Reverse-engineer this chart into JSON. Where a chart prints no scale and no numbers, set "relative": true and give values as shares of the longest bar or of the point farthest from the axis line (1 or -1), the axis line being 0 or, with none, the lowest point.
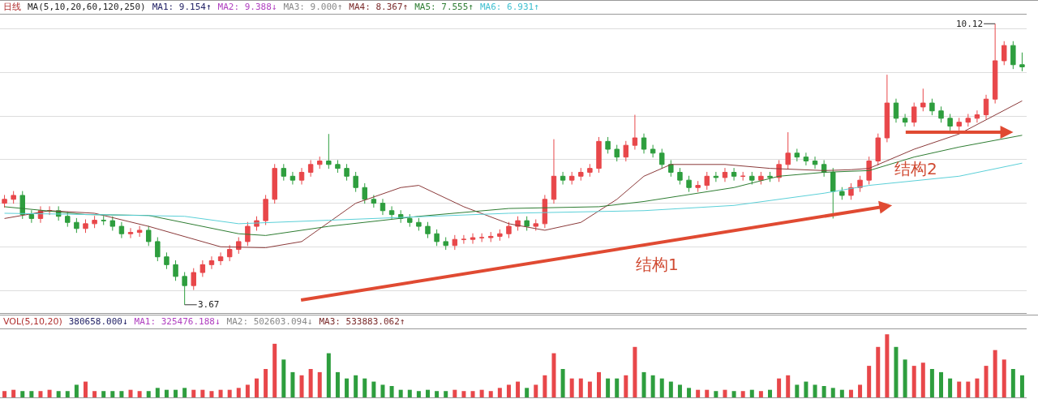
{
  "chart_data": [
    {
      "type": "candlestick",
      "title": "日线",
      "annotations": [
        "MA(5,10,20,60,120,250)",
        "MA1: 9.154↑",
        "MA2: 9.388↓",
        "MA3: 9.000↑",
        "MA4: 8.367↑",
        "MA5: 7.555↑",
        "MA6: 6.931↑",
        "10.12",
        "3.67",
        "结构1",
        "结构2"
      ],
      "categories": [
        null,
        null,
        null,
        null,
        null,
        null,
        null,
        null,
        null,
        null,
        null,
        null,
        null,
        null,
        null,
        null,
        null,
        null,
        null,
        null,
        null,
        null,
        null,
        null,
        null,
        null,
        null,
        null,
        null,
        null,
        null,
        null,
        null,
        null,
        null,
        null,
        null,
        null,
        null,
        null,
        null,
        null,
        null,
        null,
        null,
        null,
        null,
        null,
        null,
        null,
        null,
        null,
        null,
        null,
        null,
        null,
        null,
        null,
        null,
        null,
        null,
        null,
        null,
        null,
        null,
        null,
        null,
        null,
        null,
        null,
        null,
        null,
        null,
        null,
        null,
        null,
        null,
        null,
        null,
        null,
        null,
        null,
        null,
        null,
        null,
        null,
        null,
        null,
        null,
        null,
        null,
        null,
        null,
        null,
        null,
        null,
        null,
        null,
        null,
        null,
        null,
        null,
        null,
        null,
        null,
        null,
        null,
        null,
        null,
        null,
        null,
        null,
        null,
        null
      ],
      "ohlc": [
        [
          6.0,
          6.19,
          5.9,
          6.09
        ],
        [
          6.09,
          6.28,
          5.99,
          6.18
        ],
        [
          6.18,
          6.28,
          5.64,
          5.74
        ],
        [
          5.74,
          5.84,
          5.55,
          5.65
        ],
        [
          5.65,
          5.93,
          5.55,
          5.83
        ],
        [
          5.83,
          5.93,
          5.73,
          5.83
        ],
        [
          5.83,
          5.93,
          5.6,
          5.7
        ],
        [
          5.7,
          5.8,
          5.46,
          5.56
        ],
        [
          5.56,
          5.66,
          5.32,
          5.42
        ],
        [
          5.42,
          5.63,
          5.32,
          5.53
        ],
        [
          5.53,
          5.71,
          5.43,
          5.61
        ],
        [
          5.61,
          5.71,
          5.5,
          5.6
        ],
        [
          5.6,
          5.7,
          5.37,
          5.47
        ],
        [
          5.47,
          5.57,
          5.2,
          5.3
        ],
        [
          5.3,
          5.43,
          5.2,
          5.33
        ],
        [
          5.33,
          5.48,
          5.23,
          5.38
        ],
        [
          5.38,
          5.48,
          5.02,
          5.12
        ],
        [
          5.12,
          5.22,
          4.67,
          4.77
        ],
        [
          4.77,
          4.87,
          4.49,
          4.59
        ],
        [
          4.59,
          4.69,
          4.22,
          4.32
        ],
        [
          4.32,
          4.42,
          3.67,
          4.11
        ],
        [
          4.11,
          4.51,
          4.01,
          4.41
        ],
        [
          4.41,
          4.69,
          4.31,
          4.59
        ],
        [
          4.59,
          4.78,
          4.49,
          4.68
        ],
        [
          4.68,
          4.87,
          4.58,
          4.77
        ],
        [
          4.77,
          5.04,
          4.67,
          4.94
        ],
        [
          4.94,
          5.22,
          4.84,
          5.12
        ],
        [
          5.12,
          5.57,
          5.02,
          5.47
        ],
        [
          5.47,
          5.7,
          5.37,
          5.6
        ],
        [
          5.6,
          6.19,
          5.5,
          6.09
        ],
        [
          6.09,
          6.9,
          5.99,
          6.8
        ],
        [
          6.8,
          6.9,
          6.52,
          6.62
        ],
        [
          6.62,
          6.72,
          6.43,
          6.53
        ],
        [
          6.53,
          6.81,
          6.43,
          6.71
        ],
        [
          6.71,
          6.99,
          6.61,
          6.89
        ],
        [
          6.89,
          7.07,
          6.79,
          6.97
        ],
        [
          6.97,
          7.59,
          6.79,
          6.89
        ],
        [
          6.89,
          6.99,
          6.7,
          6.8
        ],
        [
          6.8,
          6.9,
          6.52,
          6.62
        ],
        [
          6.62,
          6.72,
          6.26,
          6.36
        ],
        [
          6.36,
          6.46,
          5.99,
          6.09
        ],
        [
          6.09,
          6.19,
          5.9,
          6.0
        ],
        [
          6.0,
          6.1,
          5.73,
          5.83
        ],
        [
          5.83,
          5.93,
          5.64,
          5.74
        ],
        [
          5.74,
          5.84,
          5.55,
          5.65
        ],
        [
          5.65,
          5.75,
          5.46,
          5.56
        ],
        [
          5.56,
          5.66,
          5.37,
          5.47
        ],
        [
          5.47,
          5.57,
          5.2,
          5.3
        ],
        [
          5.3,
          5.4,
          5.02,
          5.12
        ],
        [
          5.12,
          5.22,
          4.93,
          5.03
        ],
        [
          5.03,
          5.27,
          4.93,
          5.17
        ],
        [
          5.17,
          5.27,
          5.07,
          5.17
        ],
        [
          5.17,
          5.31,
          5.07,
          5.21
        ],
        [
          5.21,
          5.31,
          5.11,
          5.21
        ],
        [
          5.21,
          5.34,
          5.11,
          5.24
        ],
        [
          5.24,
          5.4,
          5.14,
          5.3
        ],
        [
          5.3,
          5.57,
          5.2,
          5.47
        ],
        [
          5.47,
          5.7,
          5.37,
          5.6
        ],
        [
          5.6,
          5.7,
          5.37,
          5.47
        ],
        [
          5.47,
          5.63,
          5.37,
          5.53
        ],
        [
          5.53,
          6.19,
          5.43,
          6.09
        ],
        [
          6.09,
          7.47,
          5.99,
          6.62
        ],
        [
          6.62,
          6.72,
          6.43,
          6.53
        ],
        [
          6.53,
          6.72,
          6.43,
          6.62
        ],
        [
          6.62,
          6.81,
          6.52,
          6.71
        ],
        [
          6.71,
          6.9,
          6.61,
          6.8
        ],
        [
          6.8,
          7.52,
          6.7,
          7.42
        ],
        [
          7.42,
          7.52,
          7.14,
          7.24
        ],
        [
          7.24,
          7.34,
          6.96,
          7.06
        ],
        [
          7.06,
          7.43,
          6.96,
          7.33
        ],
        [
          7.33,
          8.03,
          7.23,
          7.5
        ],
        [
          7.5,
          7.6,
          7.14,
          7.24
        ],
        [
          7.24,
          7.34,
          7.05,
          7.15
        ],
        [
          7.15,
          7.25,
          6.79,
          6.89
        ],
        [
          6.89,
          6.99,
          6.61,
          6.71
        ],
        [
          6.71,
          6.81,
          6.43,
          6.53
        ],
        [
          6.53,
          6.63,
          6.26,
          6.36
        ],
        [
          6.36,
          6.51,
          6.26,
          6.41
        ],
        [
          6.41,
          6.72,
          6.31,
          6.62
        ],
        [
          6.62,
          6.72,
          6.49,
          6.59
        ],
        [
          6.59,
          6.81,
          6.49,
          6.71
        ],
        [
          6.71,
          6.81,
          6.52,
          6.62
        ],
        [
          6.62,
          6.72,
          6.52,
          6.62
        ],
        [
          6.62,
          6.72,
          6.43,
          6.53
        ],
        [
          6.53,
          6.72,
          6.43,
          6.62
        ],
        [
          6.62,
          6.72,
          6.49,
          6.59
        ],
        [
          6.59,
          6.99,
          6.49,
          6.89
        ],
        [
          6.89,
          7.63,
          6.79,
          7.15
        ],
        [
          7.15,
          7.25,
          6.96,
          7.06
        ],
        [
          7.06,
          7.16,
          6.87,
          6.97
        ],
        [
          6.97,
          7.07,
          6.79,
          6.89
        ],
        [
          6.89,
          6.99,
          6.61,
          6.71
        ],
        [
          6.71,
          6.81,
          5.65,
          6.27
        ],
        [
          6.27,
          6.37,
          6.08,
          6.18
        ],
        [
          6.18,
          6.46,
          6.08,
          6.36
        ],
        [
          6.36,
          6.63,
          6.26,
          6.53
        ],
        [
          6.53,
          7.07,
          6.43,
          6.97
        ],
        [
          6.97,
          7.6,
          6.87,
          7.5
        ],
        [
          7.5,
          8.95,
          7.4,
          8.3
        ],
        [
          8.3,
          8.4,
          7.85,
          7.95
        ],
        [
          7.95,
          8.05,
          7.76,
          7.86
        ],
        [
          7.86,
          8.31,
          7.76,
          8.21
        ],
        [
          8.21,
          8.63,
          8.11,
          8.3
        ],
        [
          8.3,
          8.4,
          8.02,
          8.12
        ],
        [
          8.12,
          8.22,
          7.85,
          7.95
        ],
        [
          7.95,
          8.05,
          7.67,
          7.77
        ],
        [
          7.77,
          7.96,
          7.67,
          7.86
        ],
        [
          7.86,
          8.05,
          7.76,
          7.95
        ],
        [
          7.95,
          8.13,
          7.85,
          8.03
        ],
        [
          8.03,
          8.49,
          7.93,
          8.39
        ],
        [
          8.39,
          10.12,
          8.29,
          9.27
        ],
        [
          9.27,
          9.72,
          9.17,
          9.62
        ],
        [
          9.62,
          9.72,
          9.08,
          9.18
        ],
        [
          9.18,
          9.46,
          9.03,
          9.13
        ]
      ],
      "colors": [
        "#e8474a",
        "#e8474a",
        "#2e9e3e",
        "#2e9e3e",
        "#e8474a",
        "#e8474a",
        "#2e9e3e",
        "#2e9e3e",
        "#2e9e3e",
        "#e8474a",
        "#e8474a",
        "#2e9e3e",
        "#2e9e3e",
        "#2e9e3e",
        "#e8474a",
        "#e8474a",
        "#2e9e3e",
        "#2e9e3e",
        "#2e9e3e",
        "#2e9e3e",
        "#2e9e3e",
        "#e8474a",
        "#e8474a",
        "#e8474a",
        "#e8474a",
        "#e8474a",
        "#e8474a",
        "#e8474a",
        "#e8474a",
        "#e8474a",
        "#e8474a",
        "#2e9e3e",
        "#2e9e3e",
        "#e8474a",
        "#e8474a",
        "#e8474a",
        "#2e9e3e",
        "#2e9e3e",
        "#2e9e3e",
        "#2e9e3e",
        "#2e9e3e",
        "#2e9e3e",
        "#2e9e3e",
        "#2e9e3e",
        "#2e9e3e",
        "#2e9e3e",
        "#2e9e3e",
        "#2e9e3e",
        "#2e9e3e",
        "#2e9e3e",
        "#e8474a",
        "#e8474a",
        "#e8474a",
        "#e8474a",
        "#e8474a",
        "#e8474a",
        "#e8474a",
        "#e8474a",
        "#2e9e3e",
        "#e8474a",
        "#e8474a",
        "#e8474a",
        "#2e9e3e",
        "#e8474a",
        "#e8474a",
        "#e8474a",
        "#e8474a",
        "#2e9e3e",
        "#2e9e3e",
        "#e8474a",
        "#e8474a",
        "#2e9e3e",
        "#2e9e3e",
        "#2e9e3e",
        "#2e9e3e",
        "#2e9e3e",
        "#2e9e3e",
        "#e8474a",
        "#e8474a",
        "#2e9e3e",
        "#e8474a",
        "#2e9e3e",
        "#e8474a",
        "#2e9e3e",
        "#e8474a",
        "#2e9e3e",
        "#e8474a",
        "#e8474a",
        "#2e9e3e",
        "#2e9e3e",
        "#2e9e3e",
        "#2e9e3e",
        "#2e9e3e",
        "#2e9e3e",
        "#e8474a",
        "#e8474a",
        "#e8474a",
        "#e8474a",
        "#e8474a",
        "#2e9e3e",
        "#2e9e3e",
        "#e8474a",
        "#e8474a",
        "#2e9e3e",
        "#2e9e3e",
        "#2e9e3e",
        "#e8474a",
        "#e8474a",
        "#e8474a",
        "#e8474a",
        "#e8474a",
        "#e8474a",
        "#2e9e3e",
        "#2e9e3e"
      ],
      "series": [
        {
          "type": "line",
          "color": "#8b3a3a",
          "values": [
            5.65,
            null,
            null,
            null,
            null,
            5.83,
            null,
            null,
            null,
            null,
            5.77,
            null,
            null,
            null,
            null,
            null,
            5.47,
            null,
            null,
            null,
            null,
            null,
            null,
            null,
            5.0,
            null,
            null,
            null,
            null,
            4.98,
            null,
            null,
            null,
            5.12,
            null,
            null,
            null,
            null,
            null,
            6.0,
            null,
            null,
            null,
            null,
            6.36,
            null,
            6.41,
            null,
            null,
            null,
            null,
            5.92,
            null,
            null,
            null,
            null,
            5.53,
            null,
            null,
            null,
            5.38,
            null,
            null,
            null,
            5.56,
            null,
            null,
            null,
            6.09,
            null,
            null,
            6.62,
            null,
            null,
            6.89,
            null,
            null,
            null,
            null,
            null,
            6.89,
            null,
            null,
            null,
            null,
            6.8,
            null,
            null,
            null,
            null,
            null,
            6.75,
            null,
            null,
            6.77,
            null,
            6.8,
            null,
            null,
            null,
            null,
            7.24,
            null,
            null,
            null,
            null,
            7.59,
            null,
            null,
            null,
            null,
            null,
            null,
            8.35
          ]
        },
        {
          "type": "line",
          "color": "#2e7d32",
          "values": [
            5.92,
            null,
            null,
            null,
            null,
            null,
            null,
            null,
            null,
            5.74,
            null,
            null,
            null,
            null,
            null,
            null,
            5.72,
            null,
            null,
            null,
            null,
            null,
            null,
            null,
            null,
            null,
            5.3,
            null,
            null,
            5.26,
            null,
            null,
            null,
            null,
            null,
            null,
            5.47,
            null,
            null,
            null,
            null,
            null,
            null,
            null,
            null,
            null,
            5.7,
            null,
            null,
            null,
            null,
            null,
            null,
            null,
            null,
            null,
            5.88,
            null,
            null,
            null,
            null,
            null,
            null,
            null,
            null,
            null,
            5.92,
            null,
            null,
            null,
            null,
            6.04,
            null,
            null,
            null,
            null,
            null,
            null,
            null,
            null,
            null,
            6.36,
            null,
            null,
            null,
            null,
            6.62,
            null,
            null,
            null,
            null,
            6.71,
            null,
            null,
            null,
            null,
            6.75,
            null,
            null,
            null,
            null,
            7.06,
            null,
            null,
            null,
            null,
            7.29,
            null,
            null,
            null,
            null,
            null,
            null,
            7.56
          ]
        },
        {
          "type": "line",
          "color": "#5bd0d8",
          "values": [
            5.77,
            null,
            null,
            null,
            null,
            null,
            null,
            null,
            null,
            null,
            5.74,
            null,
            null,
            null,
            null,
            null,
            null,
            null,
            null,
            null,
            5.7,
            null,
            null,
            null,
            null,
            null,
            5.53,
            null,
            null,
            null,
            null,
            null,
            null,
            null,
            null,
            null,
            5.61,
            null,
            null,
            null,
            null,
            null,
            null,
            null,
            null,
            null,
            null,
            null,
            null,
            null,
            null,
            null,
            null,
            null,
            null,
            null,
            5.77,
            null,
            null,
            null,
            null,
            null,
            null,
            null,
            null,
            null,
            null,
            null,
            null,
            null,
            null,
            5.83,
            null,
            null,
            null,
            null,
            null,
            null,
            null,
            null,
            null,
            5.95,
            null,
            null,
            null,
            null,
            null,
            null,
            null,
            null,
            null,
            6.23,
            null,
            null,
            null,
            null,
            6.41,
            null,
            null,
            null,
            null,
            null,
            null,
            null,
            null,
            null,
            6.62,
            null,
            null,
            null,
            null,
            null,
            null,
            6.92
          ]
        }
      ],
      "ylim": [
        3.48,
        10.33
      ],
      "yticks": [
        {
          "value": 4,
          "label": null
        },
        {
          "value": 5,
          "label": null
        },
        {
          "value": 6,
          "label": null
        },
        {
          "value": 7,
          "label": null
        },
        {
          "value": 8,
          "label": null
        },
        {
          "value": 9,
          "label": null
        },
        {
          "value": 10,
          "label": null
        }
      ],
      "grid": "y"
    },
    {
      "type": "bar",
      "title": "VOL(5,10,20)",
      "relative": true,
      "annotations": [
        "380658.000↓",
        "MA1: 325476.188↓",
        "MA2: 502603.094↓",
        "MA3: 533883.062↑"
      ],
      "categories": [
        null,
        null,
        null,
        null,
        null,
        null,
        null,
        null,
        null,
        null,
        null,
        null,
        null,
        null,
        null,
        null,
        null,
        null,
        null,
        null,
        null,
        null,
        null,
        null,
        null,
        null,
        null,
        null,
        null,
        null,
        null,
        null,
        null,
        null,
        null,
        null,
        null,
        null,
        null,
        null,
        null,
        null,
        null,
        null,
        null,
        null,
        null,
        null,
        null,
        null,
        null,
        null,
        null,
        null,
        null,
        null,
        null,
        null,
        null,
        null,
        null,
        null,
        null,
        null,
        null,
        null,
        null,
        null,
        null,
        null,
        null,
        null,
        null,
        null,
        null,
        null,
        null,
        null,
        null,
        null,
        null,
        null,
        null,
        null,
        null,
        null,
        null,
        null,
        null,
        null,
        null,
        null,
        null,
        null,
        null,
        null,
        null,
        null,
        null,
        null,
        null,
        null,
        null,
        null,
        null,
        null,
        null,
        null,
        null,
        null,
        null,
        null,
        null,
        null
      ],
      "values": [
        0.1,
        0.12,
        0.1,
        0.1,
        0.1,
        0.12,
        0.1,
        0.1,
        0.2,
        0.25,
        0.1,
        0.1,
        0.1,
        0.1,
        0.12,
        0.1,
        0.1,
        0.15,
        0.12,
        0.12,
        0.15,
        0.12,
        0.12,
        0.1,
        0.12,
        0.12,
        0.15,
        0.2,
        0.3,
        0.45,
        0.85,
        0.6,
        0.4,
        0.35,
        0.45,
        0.4,
        0.7,
        0.4,
        0.3,
        0.35,
        0.3,
        0.25,
        0.2,
        0.18,
        0.12,
        0.12,
        0.1,
        0.12,
        0.1,
        0.1,
        0.12,
        0.1,
        0.1,
        0.12,
        0.1,
        0.15,
        0.2,
        0.25,
        0.15,
        0.2,
        0.35,
        0.7,
        0.45,
        0.3,
        0.3,
        0.25,
        0.4,
        0.3,
        0.3,
        0.35,
        0.8,
        0.4,
        0.35,
        0.3,
        0.25,
        0.2,
        0.15,
        0.12,
        0.12,
        0.1,
        0.12,
        0.1,
        0.1,
        0.12,
        0.1,
        0.12,
        0.3,
        0.35,
        0.2,
        0.25,
        0.2,
        0.18,
        0.15,
        0.12,
        0.12,
        0.2,
        0.5,
        0.8,
        1,
        0.8,
        0.6,
        0.5,
        0.55,
        0.45,
        0.4,
        0.3,
        0.25,
        0.25,
        0.3,
        0.5,
        0.75,
        0.6,
        0.45,
        0.35
      ],
      "colors": [
        "#e8474a",
        "#e8474a",
        "#2e9e3e",
        "#2e9e3e",
        "#e8474a",
        "#e8474a",
        "#2e9e3e",
        "#2e9e3e",
        "#2e9e3e",
        "#e8474a",
        "#e8474a",
        "#2e9e3e",
        "#2e9e3e",
        "#2e9e3e",
        "#e8474a",
        "#e8474a",
        "#2e9e3e",
        "#2e9e3e",
        "#2e9e3e",
        "#2e9e3e",
        "#2e9e3e",
        "#e8474a",
        "#e8474a",
        "#e8474a",
        "#e8474a",
        "#e8474a",
        "#e8474a",
        "#e8474a",
        "#e8474a",
        "#e8474a",
        "#e8474a",
        "#2e9e3e",
        "#2e9e3e",
        "#e8474a",
        "#e8474a",
        "#e8474a",
        "#2e9e3e",
        "#2e9e3e",
        "#2e9e3e",
        "#2e9e3e",
        "#2e9e3e",
        "#2e9e3e",
        "#2e9e3e",
        "#2e9e3e",
        "#2e9e3e",
        "#2e9e3e",
        "#2e9e3e",
        "#2e9e3e",
        "#2e9e3e",
        "#2e9e3e",
        "#e8474a",
        "#e8474a",
        "#e8474a",
        "#e8474a",
        "#e8474a",
        "#e8474a",
        "#e8474a",
        "#e8474a",
        "#2e9e3e",
        "#e8474a",
        "#e8474a",
        "#e8474a",
        "#2e9e3e",
        "#e8474a",
        "#e8474a",
        "#e8474a",
        "#e8474a",
        "#2e9e3e",
        "#2e9e3e",
        "#e8474a",
        "#e8474a",
        "#2e9e3e",
        "#2e9e3e",
        "#2e9e3e",
        "#2e9e3e",
        "#2e9e3e",
        "#2e9e3e",
        "#e8474a",
        "#e8474a",
        "#2e9e3e",
        "#e8474a",
        "#2e9e3e",
        "#e8474a",
        "#2e9e3e",
        "#e8474a",
        "#2e9e3e",
        "#e8474a",
        "#e8474a",
        "#2e9e3e",
        "#2e9e3e",
        "#2e9e3e",
        "#2e9e3e",
        "#2e9e3e",
        "#2e9e3e",
        "#e8474a",
        "#e8474a",
        "#e8474a",
        "#e8474a",
        "#e8474a",
        "#2e9e3e",
        "#2e9e3e",
        "#e8474a",
        "#e8474a",
        "#2e9e3e",
        "#2e9e3e",
        "#2e9e3e",
        "#e8474a",
        "#e8474a",
        "#e8474a",
        "#e8474a",
        "#e8474a",
        "#e8474a",
        "#2e9e3e",
        "#2e9e3e"
      ]
    }
  ]
}
